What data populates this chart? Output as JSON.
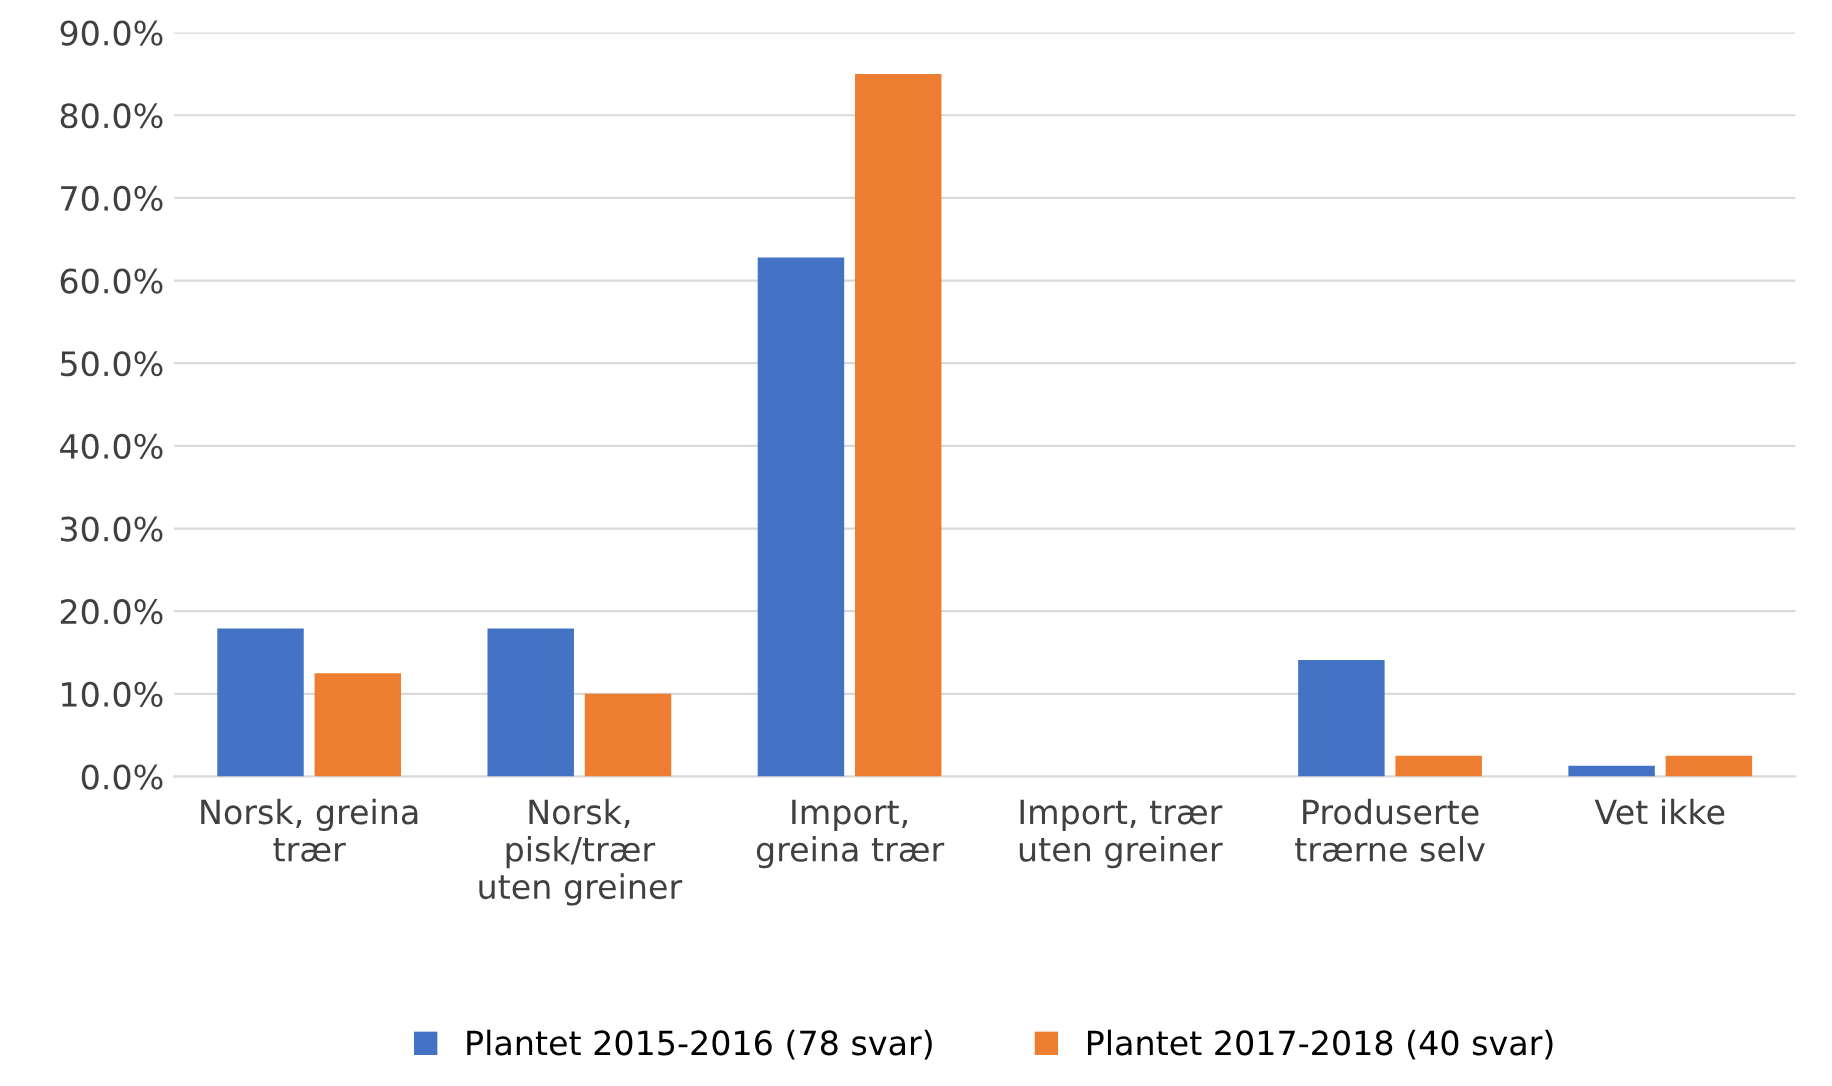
{
  "chart_data": {
    "type": "bar",
    "categories": [
      "Norsk, greina\ntrær",
      "Norsk,\npisk/trær\nuten greiner",
      "Import,\ngreina trær",
      "Import, trær\nuten greiner",
      "Produserte\ntrærne selv",
      "Vet ikke"
    ],
    "series": [
      {
        "name": "Plantet 2015-2016 (78 svar)",
        "color": "#4472c4",
        "values": [
          17.9,
          17.9,
          62.8,
          0,
          14.1,
          1.3
        ]
      },
      {
        "name": "Plantet 2017-2018 (40 svar)",
        "color": "#ed7d31",
        "values": [
          12.5,
          10.0,
          85.0,
          0,
          2.5,
          2.5
        ]
      }
    ],
    "ylim": [
      0,
      90
    ],
    "yticks": [
      {
        "value": 0,
        "label": "0.0%"
      },
      {
        "value": 10,
        "label": "10.0%"
      },
      {
        "value": 20,
        "label": "20.0%"
      },
      {
        "value": 30,
        "label": "30.0%"
      },
      {
        "value": 40,
        "label": "40.0%"
      },
      {
        "value": 50,
        "label": "50.0%"
      },
      {
        "value": 60,
        "label": "60.0%"
      },
      {
        "value": 70,
        "label": "70.0%"
      },
      {
        "value": 80,
        "label": "80.0%"
      },
      {
        "value": 90,
        "label": "90.0%"
      }
    ],
    "grid": "y",
    "legend": "bottom"
  }
}
